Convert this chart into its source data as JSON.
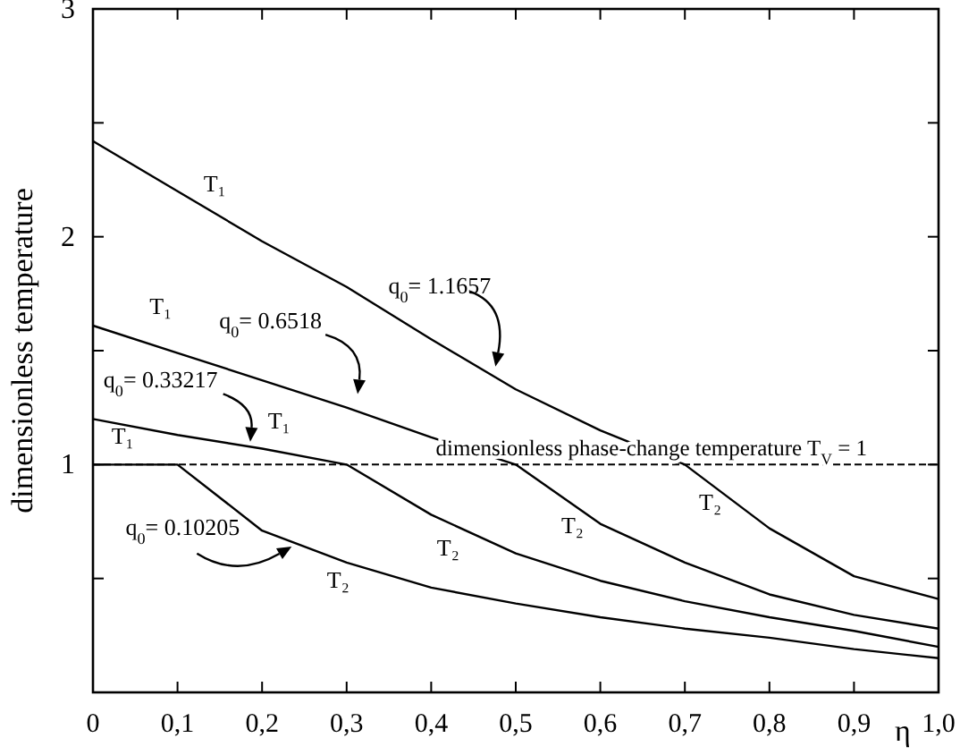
{
  "chart_data": {
    "type": "line",
    "xlabel": "η",
    "ylabel": "dimensionless temperature",
    "x": [
      0,
      0.1,
      0.2,
      0.3,
      0.4,
      0.5,
      0.6,
      0.7,
      0.8,
      0.9,
      1.0
    ],
    "series": [
      {
        "color": "#000000",
        "values": [
          2.42,
          2.2,
          1.98,
          1.78,
          1.55,
          1.33,
          1.15,
          1.0,
          0.72,
          0.51,
          0.41
        ]
      },
      {
        "color": "#000000",
        "values": [
          1.61,
          1.49,
          1.37,
          1.25,
          1.12,
          1.0,
          0.74,
          0.57,
          0.43,
          0.34,
          0.28
        ]
      },
      {
        "color": "#000000",
        "values": [
          1.2,
          1.13,
          1.07,
          1.0,
          0.78,
          0.61,
          0.49,
          0.4,
          0.33,
          0.27,
          0.2
        ]
      },
      {
        "color": "#000000",
        "values": [
          1.0,
          1.0,
          0.71,
          0.57,
          0.46,
          0.39,
          0.33,
          0.28,
          0.24,
          0.19,
          0.15
        ]
      }
    ],
    "xlim": [
      0,
      1
    ],
    "ylim": [
      0,
      3
    ],
    "xticks": [
      0,
      {
        "value": 0.1,
        "label": "0,1"
      },
      {
        "value": 0.2,
        "label": "0,2"
      },
      {
        "value": 0.3,
        "label": "0,3"
      },
      {
        "value": 0.4,
        "label": "0,4"
      },
      {
        "value": 0.5,
        "label": "0,5"
      },
      {
        "value": 0.6,
        "label": "0,6"
      },
      {
        "value": 0.7,
        "label": "0,7"
      },
      {
        "value": 0.8,
        "label": "0,8"
      },
      {
        "value": 0.9,
        "label": "0,9"
      },
      {
        "value": 1.0,
        "label": "1,0"
      }
    ],
    "yticks": [
      {
        "value": 0.5,
        "label": null
      },
      1,
      {
        "value": 1.5,
        "label": null
      },
      2,
      {
        "value": 2.5,
        "label": null
      },
      3
    ],
    "ref_lines": [
      {
        "axis": "y",
        "value": 1,
        "label": "dimensionless phase-change temperature T$_{V}$ = 1",
        "line_style": "dashed",
        "color": "#000000"
      }
    ],
    "annotations": [
      "T₁",
      "q$_{0}$= 1.1657",
      "T₁",
      "q$_{0}$= 0.6518",
      "q$_{0}$= 0.33217",
      "T₁",
      "T₁",
      "q$_{0}$= 0.10205",
      "T₂",
      "T₂",
      "T₂",
      "T₂"
    ],
    "grid": false,
    "line_style": "solid",
    "marker": "none"
  }
}
